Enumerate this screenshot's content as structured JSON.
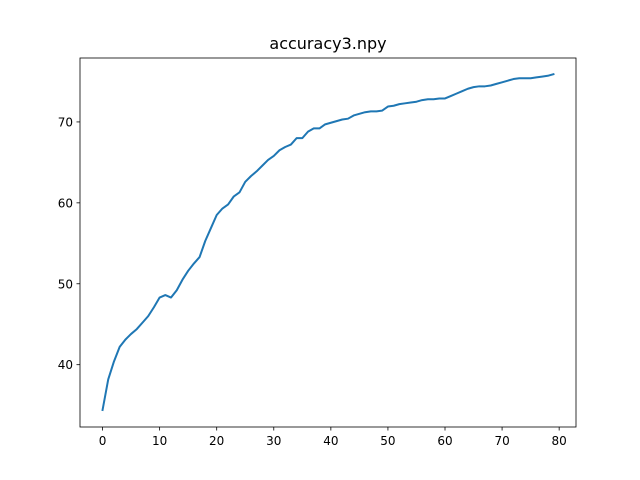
{
  "chart_data": {
    "type": "line",
    "title": "accuracy3.npy",
    "xlabel": "",
    "ylabel": "",
    "xlim": [
      -3.95,
      82.95
    ],
    "ylim": [
      32.3,
      77.9
    ],
    "xticks": [
      0,
      10,
      20,
      30,
      40,
      50,
      60,
      70,
      80
    ],
    "yticks": [
      40,
      50,
      60,
      70
    ],
    "grid": false,
    "legend": "none",
    "line_color": "#1f77b4",
    "series": [
      {
        "x": [
          0,
          1,
          2,
          3,
          4,
          5,
          6,
          7,
          8,
          9,
          10,
          11,
          12,
          13,
          14,
          15,
          16,
          17,
          18,
          19,
          20,
          21,
          22,
          23,
          24,
          25,
          26,
          27,
          28,
          29,
          30,
          31,
          32,
          33,
          34,
          35,
          36,
          37,
          38,
          39,
          40,
          41,
          42,
          43,
          44,
          45,
          46,
          47,
          48,
          49,
          50,
          51,
          52,
          53,
          54,
          55,
          56,
          57,
          58,
          59,
          60,
          61,
          62,
          63,
          64,
          65,
          66,
          67,
          68,
          69,
          70,
          71,
          72,
          73,
          74,
          75,
          76,
          77,
          78,
          79
        ],
        "values": [
          34.4,
          38.2,
          40.4,
          42.2,
          43.1,
          43.8,
          44.4,
          45.2,
          46.0,
          47.1,
          48.3,
          48.6,
          48.3,
          49.2,
          50.5,
          51.6,
          52.5,
          53.3,
          55.3,
          56.9,
          58.5,
          59.3,
          59.8,
          60.8,
          61.3,
          62.6,
          63.3,
          63.9,
          64.6,
          65.3,
          65.8,
          66.5,
          66.9,
          67.2,
          68.0,
          68.0,
          68.8,
          69.2,
          69.2,
          69.7,
          69.9,
          70.1,
          70.3,
          70.4,
          70.8,
          71.0,
          71.2,
          71.3,
          71.3,
          71.4,
          71.9,
          72.0,
          72.2,
          72.3,
          72.4,
          72.5,
          72.7,
          72.8,
          72.8,
          72.9,
          72.9,
          73.2,
          73.5,
          73.8,
          74.1,
          74.3,
          74.4,
          74.4,
          74.5,
          74.7,
          74.9,
          75.1,
          75.3,
          75.4,
          75.4,
          75.4,
          75.5,
          75.6,
          75.7,
          75.9
        ]
      }
    ]
  }
}
